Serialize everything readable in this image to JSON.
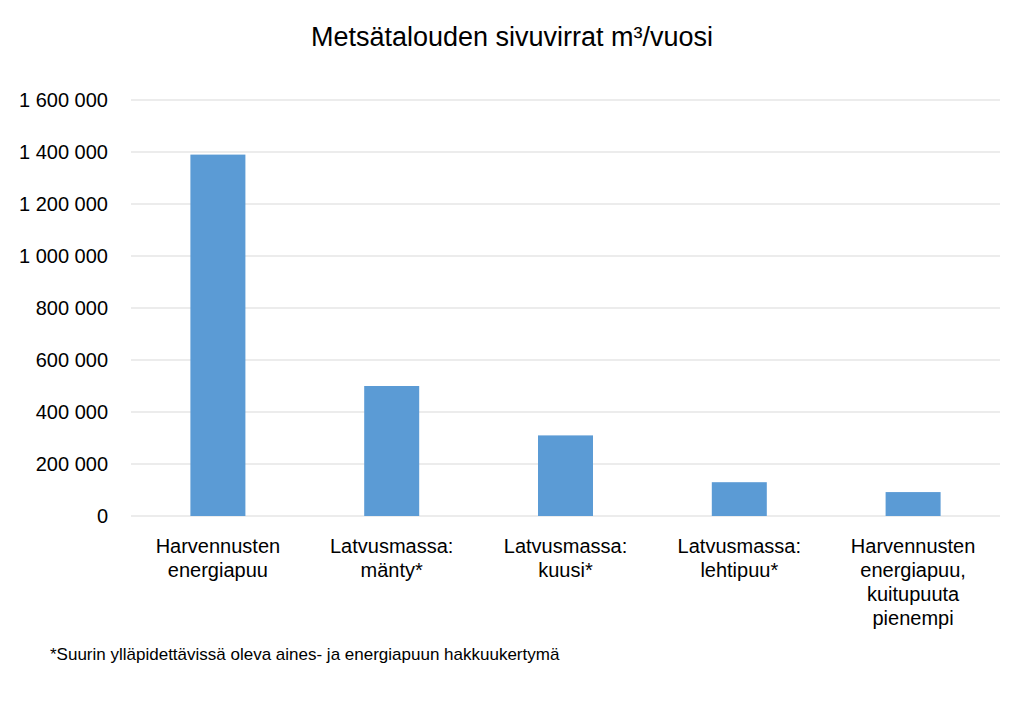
{
  "chart_data": {
    "type": "bar",
    "title": "Metsätalouden sivuvirrat m³/vuosi",
    "categories": [
      "Harvennusten energiapuu",
      "Latvusmassa: mänty*",
      "Latvusmassa: kuusi*",
      "Latvusmassa: lehtipuu*",
      "Harvennusten energiapuu, kuitupuuta pienempi"
    ],
    "values": [
      1390000,
      500000,
      310000,
      130000,
      92000
    ],
    "color": "#5b9bd5",
    "ylim": [
      0,
      1600000
    ],
    "yticks": [
      0,
      {
        "value": 200000,
        "label": "200 000"
      },
      {
        "value": 400000,
        "label": "400 000"
      },
      {
        "value": 600000,
        "label": "600 000"
      },
      {
        "value": 800000,
        "label": "800 000"
      },
      {
        "value": 1000000,
        "label": "1 000 000"
      },
      {
        "value": 1200000,
        "label": "1 200 000"
      },
      {
        "value": 1400000,
        "label": "1 400 000"
      },
      {
        "value": 1600000,
        "label": "1 600 000"
      }
    ],
    "grid": true,
    "annotation": "*Suurin ylläpidettävissä oleva aines- ja energiapuun hakkuukertymä"
  }
}
